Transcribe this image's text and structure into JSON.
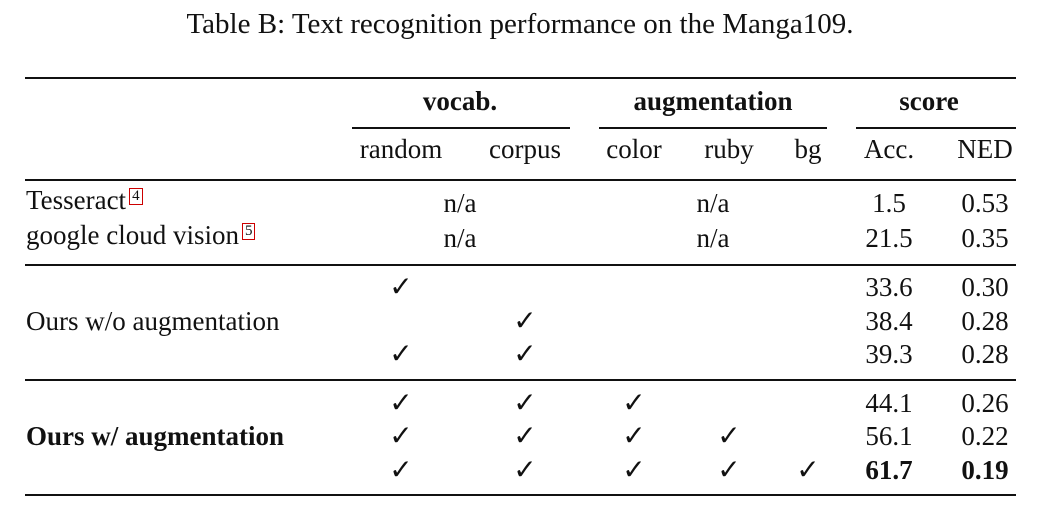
{
  "caption": "Table B: Text recognition performance on the Manga109.",
  "groups": {
    "vocab": "vocab.",
    "augmentation": "augmentation",
    "score": "score"
  },
  "subheaders": {
    "random": "random",
    "corpus": "corpus",
    "color": "color",
    "ruby": "ruby",
    "bg": "bg",
    "acc": "Acc.",
    "ned": "NED"
  },
  "check_mark": "✓",
  "baselines": [
    {
      "method": "Tesseract",
      "footnote": "4",
      "vocab": "n/a",
      "augmentation": "n/a",
      "acc": "1.5",
      "ned": "0.53"
    },
    {
      "method": "google cloud vision",
      "footnote": "5",
      "vocab": "n/a",
      "augmentation": "n/a",
      "acc": "21.5",
      "ned": "0.35"
    }
  ],
  "ours_wo": {
    "method": "Ours w/o augmentation",
    "rows": [
      {
        "random": true,
        "corpus": false,
        "acc": "33.6",
        "ned": "0.30"
      },
      {
        "random": false,
        "corpus": true,
        "acc": "38.4",
        "ned": "0.28"
      },
      {
        "random": true,
        "corpus": true,
        "acc": "39.3",
        "ned": "0.28"
      }
    ]
  },
  "ours_w": {
    "method": "Ours w/ augmentation",
    "rows": [
      {
        "random": true,
        "corpus": true,
        "color": true,
        "ruby": false,
        "bg": false,
        "acc": "44.1",
        "ned": "0.26"
      },
      {
        "random": true,
        "corpus": true,
        "color": true,
        "ruby": true,
        "bg": false,
        "acc": "56.1",
        "ned": "0.22"
      },
      {
        "random": true,
        "corpus": true,
        "color": true,
        "ruby": true,
        "bg": true,
        "acc": "61.7",
        "ned": "0.19",
        "best": true
      }
    ]
  }
}
